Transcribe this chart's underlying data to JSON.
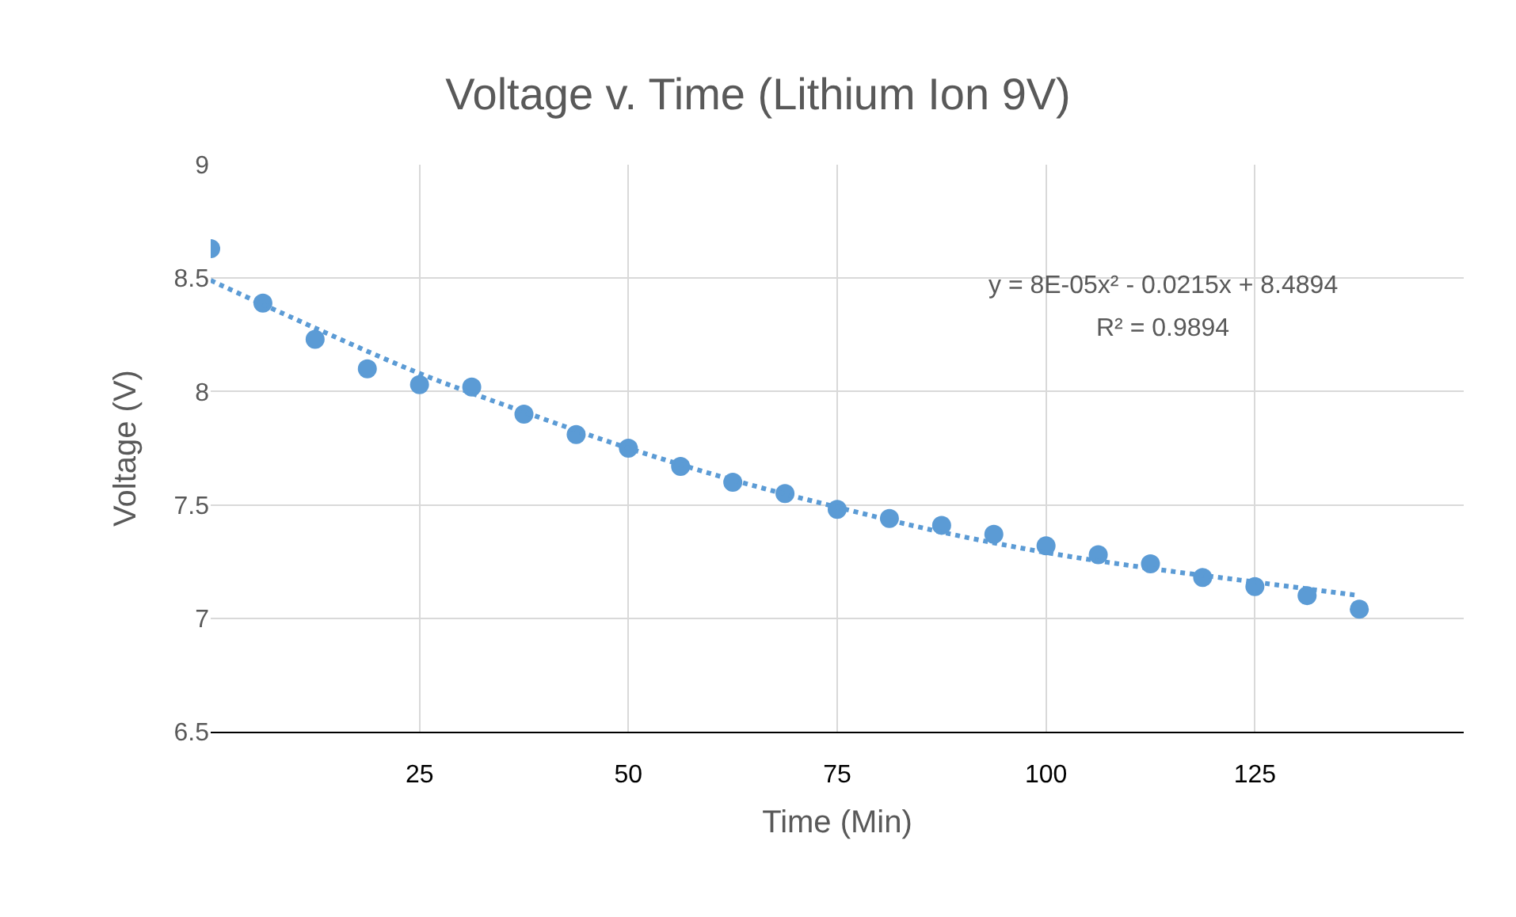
{
  "chart_data": {
    "type": "scatter",
    "title": "Voltage v. Time (Lithium Ion 9V)",
    "xlabel": "Time (Min)",
    "ylabel": "Voltage (V)",
    "xlim": [
      0,
      150
    ],
    "xticks": [
      25,
      50,
      75,
      100,
      125
    ],
    "ylim": [
      6.5,
      9
    ],
    "yticks": [
      6.5,
      7,
      7.5,
      8,
      8.5,
      9
    ],
    "grid": true,
    "marker": "circle",
    "series": [
      {
        "color": "#5b9bd5",
        "x": [
          0,
          6.25,
          12.5,
          18.75,
          25,
          31.25,
          37.5,
          43.75,
          50,
          56.25,
          62.5,
          68.75,
          75,
          81.25,
          87.5,
          93.75,
          100,
          106.25,
          112.5,
          118.75,
          125,
          131.25,
          137.5
        ],
        "values": [
          8.63,
          8.39,
          8.23,
          8.1,
          8.03,
          8.02,
          7.9,
          7.81,
          7.75,
          7.67,
          7.6,
          7.55,
          7.48,
          7.44,
          7.41,
          7.37,
          7.32,
          7.28,
          7.24,
          7.18,
          7.14,
          7.1,
          7.04
        ]
      },
      {
        "type": "line",
        "color": "#5b9bd5",
        "line_style": "dotted",
        "marker": "none",
        "x": [
          0,
          12.5,
          25,
          37.5,
          50,
          62.5,
          75,
          87.5,
          100,
          112.5,
          125,
          137.5
        ],
        "values": [
          8.49,
          8.28,
          8.08,
          7.91,
          7.75,
          7.61,
          7.49,
          7.38,
          7.29,
          7.22,
          7.16,
          7.1
        ]
      }
    ],
    "annotations": [
      "y = 8E-05x² - 0.0215x + 8.4894",
      "R² = 0.9894"
    ]
  }
}
